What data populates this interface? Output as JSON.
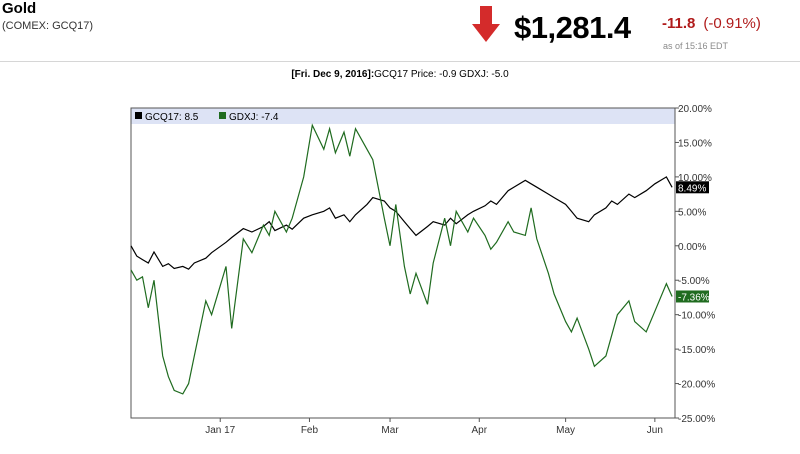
{
  "header": {
    "title": "Gold",
    "symbol": "(COMEX: GCQ17)",
    "price": "$1,281.4",
    "change": "-11.8",
    "change_pct": "(-0.91%)",
    "as_of": "as of 15:16 EDT",
    "arrow_icon": "down-arrow-icon",
    "arrow_color": "#d42b2b",
    "change_color": "#b01b1b"
  },
  "subtitle": {
    "date": "[Fri. Dec 9, 2016]:",
    "text": "GCQ17 Price: -0.9 GDXJ: -5.0"
  },
  "chart_data": {
    "type": "line",
    "title": "",
    "x_axis": {
      "range": [
        "2016-12-01",
        "2017-06-08"
      ],
      "ticks": [
        {
          "date": "2017-01-01",
          "label": "Jan 17"
        },
        {
          "date": "2017-02-01",
          "label": "Feb"
        },
        {
          "date": "2017-03-01",
          "label": "Mar"
        },
        {
          "date": "2017-04-01",
          "label": "Apr"
        },
        {
          "date": "2017-05-01",
          "label": "May"
        },
        {
          "date": "2017-06-01",
          "label": "Jun"
        }
      ]
    },
    "y_axis": {
      "unit": "%",
      "range": [
        -25,
        20
      ],
      "side": "right",
      "ticks": [
        "20.00%",
        "15.00%",
        "10.00%",
        "5.00%",
        "0.00%",
        "-5.00%",
        "-10.00%",
        "-15.00%",
        "-20.00%",
        "-25.00%"
      ],
      "tick_values": [
        20,
        15,
        10,
        5,
        0,
        -5,
        -10,
        -15,
        -20,
        -25
      ]
    },
    "grid": false,
    "legend_position": "top-left",
    "series": [
      {
        "name": "GCQ17",
        "legend_label": "GCQ17: 8.5",
        "color": "#000000",
        "last_label": "8.49%",
        "last_value": 8.49,
        "points": [
          [
            "2016-12-01",
            0.0
          ],
          [
            "2016-12-03",
            -1.5
          ],
          [
            "2016-12-05",
            -2.0
          ],
          [
            "2016-12-07",
            -2.5
          ],
          [
            "2016-12-09",
            -0.9
          ],
          [
            "2016-12-12",
            -3.0
          ],
          [
            "2016-12-14",
            -2.6
          ],
          [
            "2016-12-16",
            -3.3
          ],
          [
            "2016-12-19",
            -3.0
          ],
          [
            "2016-12-21",
            -3.4
          ],
          [
            "2016-12-23",
            -2.5
          ],
          [
            "2016-12-27",
            -1.8
          ],
          [
            "2016-12-29",
            -1.0
          ],
          [
            "2017-01-03",
            0.5
          ],
          [
            "2017-01-05",
            1.2
          ],
          [
            "2017-01-09",
            2.5
          ],
          [
            "2017-01-12",
            2.0
          ],
          [
            "2017-01-16",
            2.8
          ],
          [
            "2017-01-18",
            3.5
          ],
          [
            "2017-01-20",
            2.2
          ],
          [
            "2017-01-24",
            3.0
          ],
          [
            "2017-01-26",
            2.4
          ],
          [
            "2017-01-30",
            4.0
          ],
          [
            "2017-02-02",
            4.5
          ],
          [
            "2017-02-06",
            5.0
          ],
          [
            "2017-02-08",
            5.5
          ],
          [
            "2017-02-10",
            4.0
          ],
          [
            "2017-02-13",
            4.5
          ],
          [
            "2017-02-15",
            3.5
          ],
          [
            "2017-02-17",
            4.5
          ],
          [
            "2017-02-21",
            6.0
          ],
          [
            "2017-02-23",
            7.0
          ],
          [
            "2017-02-27",
            6.5
          ],
          [
            "2017-03-01",
            5.5
          ],
          [
            "2017-03-03",
            5.0
          ],
          [
            "2017-03-06",
            3.5
          ],
          [
            "2017-03-08",
            2.5
          ],
          [
            "2017-03-10",
            1.5
          ],
          [
            "2017-03-14",
            2.8
          ],
          [
            "2017-03-16",
            3.5
          ],
          [
            "2017-03-20",
            3.0
          ],
          [
            "2017-03-22",
            4.0
          ],
          [
            "2017-03-24",
            3.2
          ],
          [
            "2017-03-28",
            4.5
          ],
          [
            "2017-03-30",
            5.0
          ],
          [
            "2017-04-03",
            5.8
          ],
          [
            "2017-04-05",
            6.5
          ],
          [
            "2017-04-07",
            6.0
          ],
          [
            "2017-04-11",
            8.0
          ],
          [
            "2017-04-13",
            8.5
          ],
          [
            "2017-04-17",
            9.5
          ],
          [
            "2017-04-19",
            9.0
          ],
          [
            "2017-04-21",
            8.5
          ],
          [
            "2017-04-25",
            7.5
          ],
          [
            "2017-04-27",
            7.0
          ],
          [
            "2017-05-01",
            6.0
          ],
          [
            "2017-05-03",
            5.0
          ],
          [
            "2017-05-05",
            4.0
          ],
          [
            "2017-05-09",
            3.5
          ],
          [
            "2017-05-11",
            4.5
          ],
          [
            "2017-05-15",
            5.5
          ],
          [
            "2017-05-17",
            6.5
          ],
          [
            "2017-05-19",
            6.0
          ],
          [
            "2017-05-23",
            7.5
          ],
          [
            "2017-05-25",
            7.0
          ],
          [
            "2017-05-29",
            8.0
          ],
          [
            "2017-06-01",
            9.0
          ],
          [
            "2017-06-05",
            10.0
          ],
          [
            "2017-06-07",
            8.49
          ]
        ]
      },
      {
        "name": "GDXJ",
        "legend_label": "GDXJ: -7.4",
        "color": "#1f6b1f",
        "last_label": "-7.36%",
        "last_value": -7.36,
        "points": [
          [
            "2016-12-01",
            -3.5
          ],
          [
            "2016-12-03",
            -5.0
          ],
          [
            "2016-12-05",
            -4.5
          ],
          [
            "2016-12-07",
            -9.0
          ],
          [
            "2016-12-09",
            -5.0
          ],
          [
            "2016-12-12",
            -16.0
          ],
          [
            "2016-12-14",
            -19.0
          ],
          [
            "2016-12-16",
            -21.0
          ],
          [
            "2016-12-19",
            -21.5
          ],
          [
            "2016-12-21",
            -20.0
          ],
          [
            "2016-12-23",
            -16.0
          ],
          [
            "2016-12-27",
            -8.0
          ],
          [
            "2016-12-29",
            -10.0
          ],
          [
            "2017-01-03",
            -3.0
          ],
          [
            "2017-01-05",
            -12.0
          ],
          [
            "2017-01-09",
            1.0
          ],
          [
            "2017-01-12",
            -1.0
          ],
          [
            "2017-01-16",
            3.0
          ],
          [
            "2017-01-18",
            1.5
          ],
          [
            "2017-01-20",
            5.0
          ],
          [
            "2017-01-24",
            2.0
          ],
          [
            "2017-01-26",
            4.0
          ],
          [
            "2017-01-30",
            10.0
          ],
          [
            "2017-02-02",
            17.5
          ],
          [
            "2017-02-06",
            14.0
          ],
          [
            "2017-02-08",
            17.0
          ],
          [
            "2017-02-10",
            13.5
          ],
          [
            "2017-02-13",
            16.5
          ],
          [
            "2017-02-15",
            13.0
          ],
          [
            "2017-02-17",
            17.0
          ],
          [
            "2017-02-21",
            14.0
          ],
          [
            "2017-02-23",
            12.5
          ],
          [
            "2017-02-27",
            4.0
          ],
          [
            "2017-03-01",
            0.0
          ],
          [
            "2017-03-03",
            6.0
          ],
          [
            "2017-03-06",
            -3.0
          ],
          [
            "2017-03-08",
            -7.0
          ],
          [
            "2017-03-10",
            -4.0
          ],
          [
            "2017-03-14",
            -8.5
          ],
          [
            "2017-03-16",
            -2.5
          ],
          [
            "2017-03-20",
            4.0
          ],
          [
            "2017-03-22",
            0.0
          ],
          [
            "2017-03-24",
            5.0
          ],
          [
            "2017-03-28",
            2.0
          ],
          [
            "2017-03-30",
            4.0
          ],
          [
            "2017-04-03",
            1.5
          ],
          [
            "2017-04-05",
            -0.5
          ],
          [
            "2017-04-07",
            0.5
          ],
          [
            "2017-04-11",
            3.5
          ],
          [
            "2017-04-13",
            2.0
          ],
          [
            "2017-04-17",
            1.5
          ],
          [
            "2017-04-19",
            5.5
          ],
          [
            "2017-04-21",
            1.0
          ],
          [
            "2017-04-25",
            -4.0
          ],
          [
            "2017-04-27",
            -7.0
          ],
          [
            "2017-05-01",
            -11.0
          ],
          [
            "2017-05-03",
            -12.5
          ],
          [
            "2017-05-05",
            -10.5
          ],
          [
            "2017-05-09",
            -15.0
          ],
          [
            "2017-05-11",
            -17.5
          ],
          [
            "2017-05-15",
            -16.0
          ],
          [
            "2017-05-17",
            -13.0
          ],
          [
            "2017-05-19",
            -10.0
          ],
          [
            "2017-05-23",
            -8.0
          ],
          [
            "2017-05-25",
            -11.0
          ],
          [
            "2017-05-29",
            -12.5
          ],
          [
            "2017-06-01",
            -9.5
          ],
          [
            "2017-06-05",
            -5.5
          ],
          [
            "2017-06-07",
            -7.36
          ]
        ]
      }
    ]
  }
}
